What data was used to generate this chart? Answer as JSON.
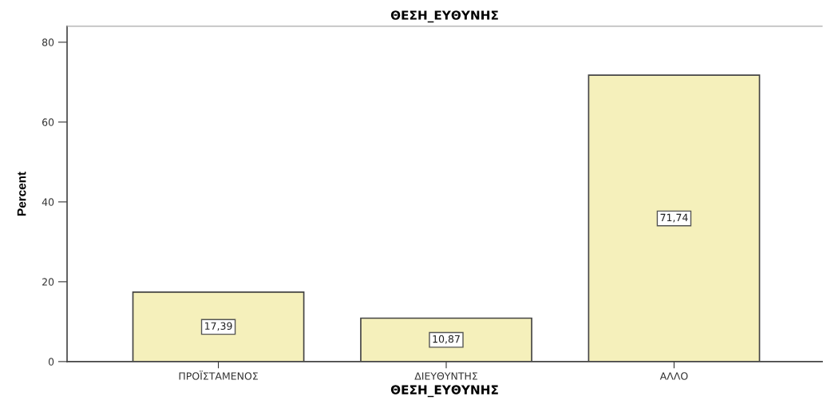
{
  "chart_data": {
    "type": "bar",
    "title": "ΘΕΣΗ_ΕΥΘΥΝΗΣ",
    "xlabel": "ΘΕΣΗ_ΕΥΘΥΝΗΣ",
    "ylabel": "Percent",
    "categories": [
      "ΠΡΟΪΣΤΑΜΕΝΟΣ",
      "ΔΙΕΥΘΥΝΤΗΣ",
      "ΑΛΛΟ"
    ],
    "values": [
      17.39,
      10.87,
      71.74
    ],
    "value_labels": [
      "17,39",
      "10,87",
      "71,74"
    ],
    "color": "#f5f0bb",
    "ylim": [
      0,
      84
    ],
    "yticks": [
      0,
      20,
      40,
      60,
      80
    ],
    "grid": false,
    "legend": false
  }
}
